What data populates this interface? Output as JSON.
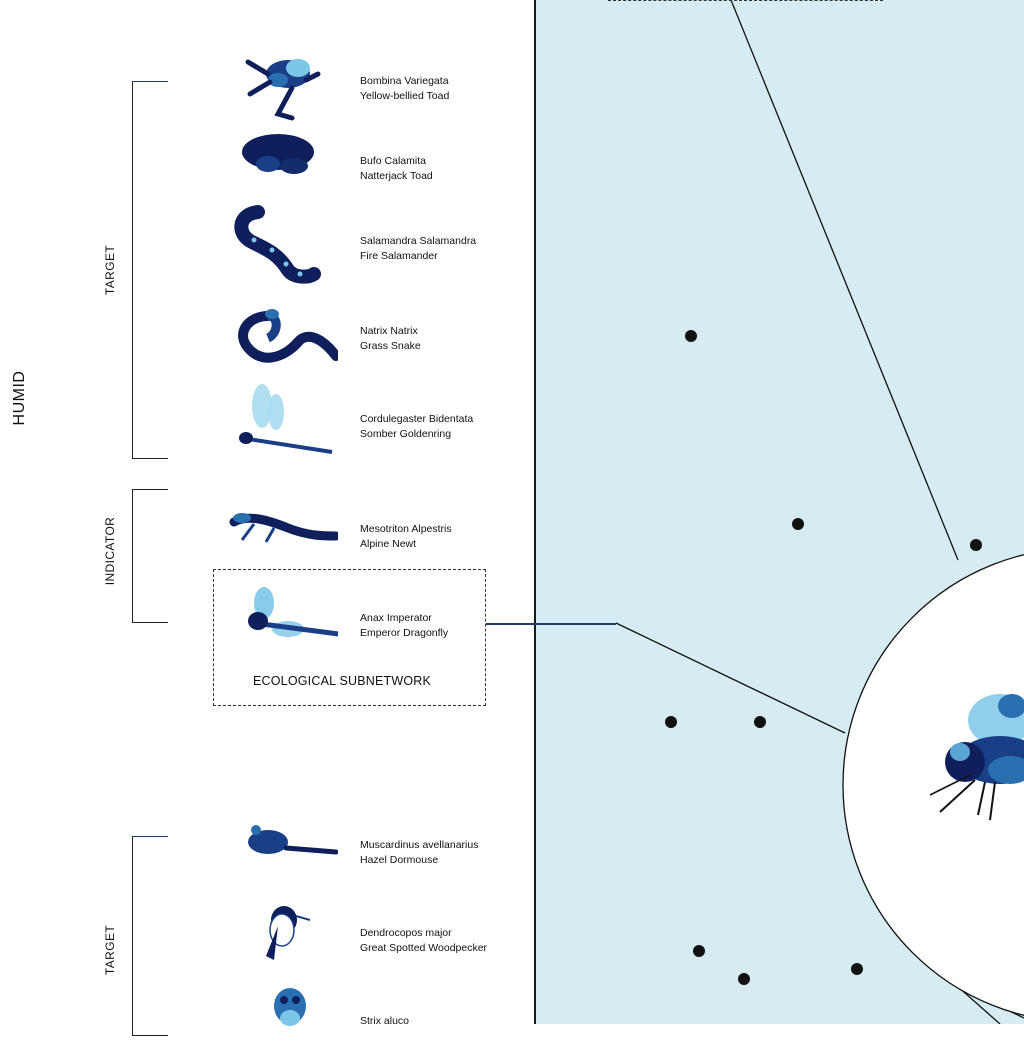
{
  "side_label": "HUMID",
  "groups": [
    {
      "label": "TARGET",
      "type": "target"
    },
    {
      "label": "INDICATOR",
      "type": "indicator"
    },
    {
      "label": "TARGET",
      "type": "target"
    }
  ],
  "species": [
    {
      "latin": "Bombina Variegata",
      "common": "Yellow-bellied Toad",
      "icon": "frog-icon"
    },
    {
      "latin": "Bufo Calamita",
      "common": "Natterjack Toad",
      "icon": "toad-icon"
    },
    {
      "latin": "Salamandra Salamandra",
      "common": "Fire Salamander",
      "icon": "salamander-icon"
    },
    {
      "latin": "Natrix Natrix",
      "common": "Grass Snake",
      "icon": "snake-icon"
    },
    {
      "latin": "Cordulegaster Bidentata",
      "common": "Somber Goldenring",
      "icon": "dragonfly-icon"
    },
    {
      "latin": "Mesotriton Alpestris",
      "common": "Alpine Newt",
      "icon": "newt-icon"
    },
    {
      "latin": "Anax Imperator",
      "common": "Emperor Dragonfly",
      "icon": "dragonfly-icon"
    },
    {
      "latin": "Muscardinus avellanarius",
      "common": "Hazel Dormouse",
      "icon": "dormouse-icon"
    },
    {
      "latin": "Dendrocopos major",
      "common": "Great Spotted Woodpecker",
      "icon": "woodpecker-icon"
    },
    {
      "latin": "Strix aluco",
      "common": "",
      "icon": "owl-icon"
    }
  ],
  "subnetwork_label": "ECOLOGICAL SUBNETWORK",
  "colors": {
    "map_background": "#d6ecf2",
    "icon_dark": "#0f1f5c",
    "icon_mid": "#2a6fb0",
    "icon_light": "#7cc6e8",
    "connector": "#1d3a6b"
  },
  "focus_icon": "fly-icon"
}
